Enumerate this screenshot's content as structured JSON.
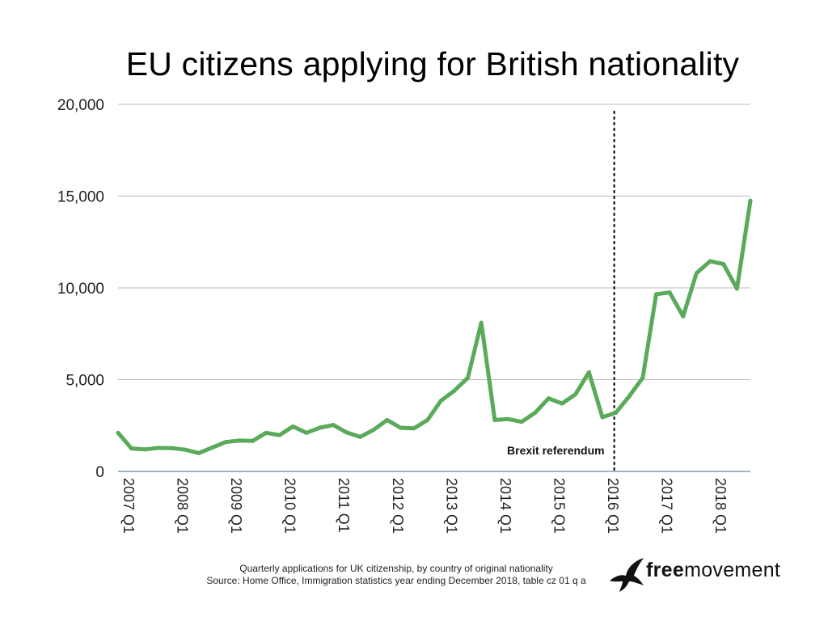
{
  "page": {
    "title": "EU citizens applying for British nationality",
    "caption_line1": "Quarterly applications for UK citizenship, by country of original nationality",
    "caption_line2": "Source: Home Office, Immigration statistics year ending December 2018, table cz 01 q a",
    "brand_bold": "free",
    "brand_regular": "movement",
    "logo_icon": "bird-logo-icon"
  },
  "chart_data": {
    "type": "line",
    "title": "EU citizens applying for British nationality",
    "xlabel": "",
    "ylabel": "",
    "ylim": [
      0,
      20000
    ],
    "yticks": [
      0,
      5000,
      10000,
      15000,
      20000
    ],
    "ytick_labels": [
      "0",
      "5,000",
      "10,000",
      "15,000",
      "20,000"
    ],
    "x": [
      "2007 Q1",
      "2007 Q2",
      "2007 Q3",
      "2007 Q4",
      "2008 Q1",
      "2008 Q2",
      "2008 Q3",
      "2008 Q4",
      "2009 Q1",
      "2009 Q2",
      "2009 Q3",
      "2009 Q4",
      "2010 Q1",
      "2010 Q2",
      "2010 Q3",
      "2010 Q4",
      "2011 Q1",
      "2011 Q2",
      "2011 Q3",
      "2011 Q4",
      "2012 Q1",
      "2012 Q2",
      "2012 Q3",
      "2012 Q4",
      "2013 Q1",
      "2013 Q2",
      "2013 Q3",
      "2013 Q4",
      "2014 Q1",
      "2014 Q2",
      "2014 Q3",
      "2014 Q4",
      "2015 Q1",
      "2015 Q2",
      "2015 Q3",
      "2015 Q4",
      "2016 Q1",
      "2016 Q2",
      "2016 Q3",
      "2016 Q4",
      "2017 Q1",
      "2017 Q2",
      "2017 Q3",
      "2017 Q4",
      "2018 Q1",
      "2018 Q2",
      "2018 Q3",
      "2018 Q4"
    ],
    "xtick_labels": [
      "2007 Q1",
      "2008 Q1",
      "2009 Q1",
      "2010 Q1",
      "2011 Q1",
      "2012 Q1",
      "2013 Q1",
      "2014 Q1",
      "2015 Q1",
      "2016 Q1",
      "2017 Q1",
      "2018 Q1"
    ],
    "series": [
      {
        "values": [
          2100,
          1250,
          1200,
          1280,
          1270,
          1180,
          1000,
          1300,
          1600,
          1680,
          1660,
          2100,
          1980,
          2450,
          2100,
          2380,
          2530,
          2120,
          1880,
          2270,
          2800,
          2380,
          2350,
          2800,
          3850,
          4400,
          5100,
          8100,
          2800,
          2850,
          2700,
          3200,
          3980,
          3700,
          4200,
          5400,
          2950,
          3200,
          4100,
          5100,
          9650,
          9750,
          8450,
          10800,
          11450,
          11300,
          9950,
          14750
        ],
        "color": "#5aaa5a"
      }
    ],
    "annotations": [
      {
        "text": "Brexit referendum",
        "x": "2016 Q2",
        "style": "dotted-vertical-line"
      }
    ],
    "grid": true,
    "grid_color": "#bbbbbb",
    "baseline_color": "#3a6f9a"
  }
}
